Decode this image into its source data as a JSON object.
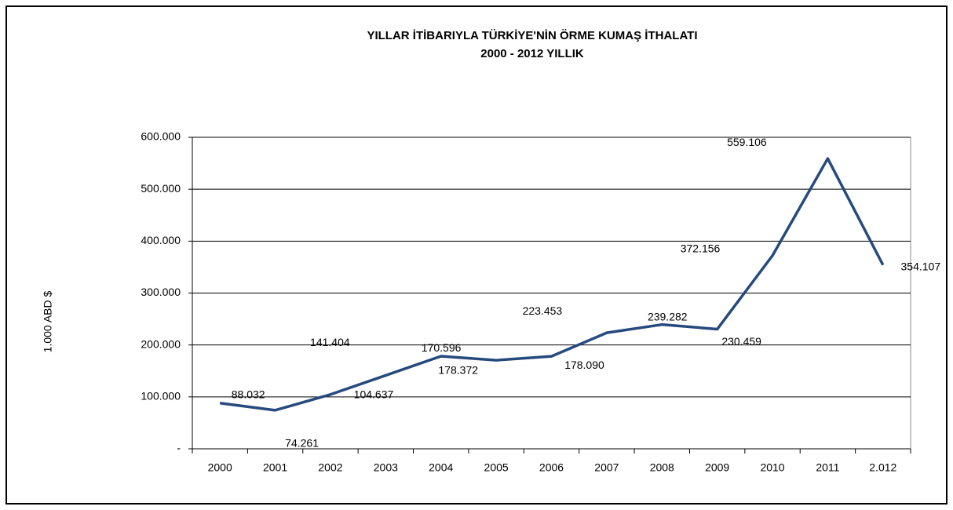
{
  "chart_data": {
    "type": "line",
    "title": "YILLAR İTİBARIYLA TÜRKİYE'NİN ÖRME KUMAŞ İTHALATI",
    "subtitle": "2000 - 2012 YILLIK",
    "y_label": "1.000 ABD $",
    "categories": [
      "2000",
      "2001",
      "2002",
      "2003",
      "2004",
      "2005",
      "2006",
      "2007",
      "2008",
      "2009",
      "2010",
      "2011",
      "2.012"
    ],
    "values": [
      88032,
      74261,
      104637,
      141404,
      178372,
      170596,
      178090,
      223453,
      239282,
      230459,
      372156,
      559106,
      354107
    ],
    "value_labels": [
      "88.032",
      "74.261",
      "104.637",
      "141.404",
      "178.372",
      "170.596",
      "178.090",
      "223.453",
      "239.282",
      "230.459",
      "372.156",
      "559.106",
      "354.107"
    ],
    "color": "#264a7d",
    "ylim": [
      0,
      600000
    ],
    "yticks": [
      {
        "value": 0,
        "label": "-"
      },
      {
        "value": 100000,
        "label": "100.000"
      },
      {
        "value": 200000,
        "label": "200.000"
      },
      {
        "value": 300000,
        "label": "300.000"
      },
      {
        "value": 400000,
        "label": "400.000"
      },
      {
        "value": 500000,
        "label": "500.000"
      },
      {
        "value": 600000,
        "label": "600.000"
      }
    ],
    "grid": true
  }
}
